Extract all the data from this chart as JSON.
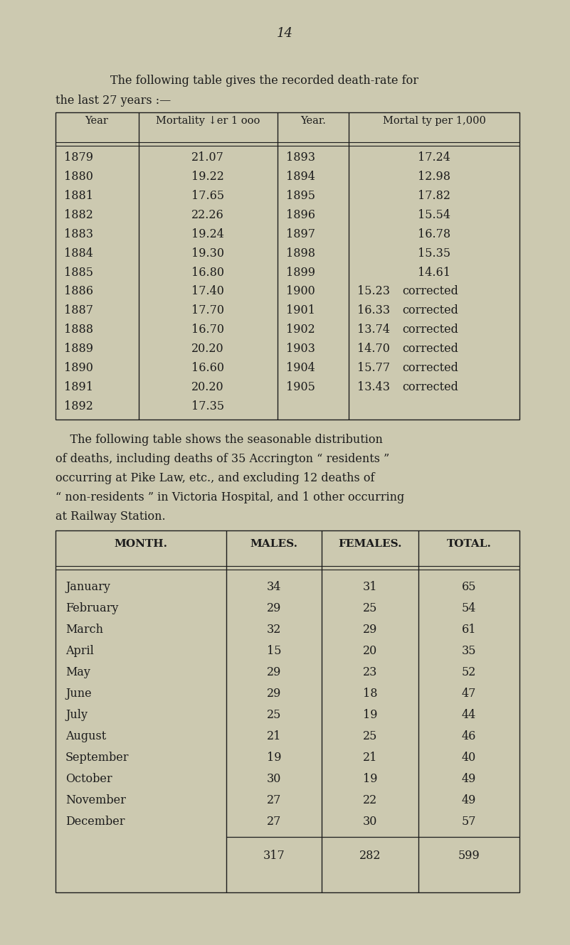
{
  "page_number": "14",
  "bg_color": "#ccc9b0",
  "text_color": "#1c1c1c",
  "intro_text1": "The following table gives the recorded death-rate for",
  "intro_text2": "the last 27 years :—",
  "t1_headers": [
    "Year",
    "Mortality ↓er 1 ooo",
    "Year.",
    "Mortal ty per 1,000"
  ],
  "t1_left": [
    [
      "1879",
      "21.07"
    ],
    [
      "1880",
      "19.22"
    ],
    [
      "1881",
      "17.65"
    ],
    [
      "1882",
      "22.26"
    ],
    [
      "1883",
      "19.24"
    ],
    [
      "1884",
      "19.30"
    ],
    [
      "1885",
      "16.80"
    ],
    [
      "1886",
      "17.40"
    ],
    [
      "1887",
      "17.70"
    ],
    [
      "1888",
      "16.70"
    ],
    [
      "1889",
      "20.20"
    ],
    [
      "1890",
      "16.60"
    ],
    [
      "1891",
      "20.20"
    ],
    [
      "1892",
      "17.35"
    ]
  ],
  "t1_right": [
    [
      "1893",
      "17.24",
      ""
    ],
    [
      "1894",
      "12.98",
      ""
    ],
    [
      "1895",
      "17.82",
      ""
    ],
    [
      "1896",
      "15.54",
      ""
    ],
    [
      "1897",
      "16.78",
      ""
    ],
    [
      "1898",
      "15.35",
      ""
    ],
    [
      "1899",
      "14.61",
      ""
    ],
    [
      "1900",
      "15.23",
      "corrected"
    ],
    [
      "1901",
      "16.33",
      "corrected"
    ],
    [
      "1902",
      "13.74",
      "corrected"
    ],
    [
      "1903",
      "14.70",
      "corrected"
    ],
    [
      "1904",
      "15.77",
      "corrected"
    ],
    [
      "1905",
      "13.43",
      "corrected"
    ]
  ],
  "mid_para": [
    "    The following table shows the seasonable distribution",
    "of deaths, including deaths of 35 Accrington “ residents ”",
    "occurring at Pike Law, etc., and excluding 12 deaths of",
    "“ non-residents ” in Victoria Hospital, and 1 other occurring",
    "at Railway Station."
  ],
  "t2_headers": [
    "Month.",
    "Males.",
    "Females.",
    "Total."
  ],
  "t2_rows": [
    [
      "January         ",
      "34",
      "31",
      "65"
    ],
    [
      "February       ",
      "29",
      "25",
      "54"
    ],
    [
      "March           ",
      "32",
      "29",
      "61"
    ],
    [
      "April           ",
      "15",
      "20",
      "35"
    ],
    [
      "May            ",
      "29",
      "23",
      "52"
    ],
    [
      "June           ",
      "29",
      "18",
      "47"
    ],
    [
      "July           ",
      "25",
      "19",
      "44"
    ],
    [
      "August         ",
      "21",
      "25",
      "46"
    ],
    [
      "September       ",
      "19",
      "21",
      "40"
    ],
    [
      "October         ",
      "30",
      "19",
      "49"
    ],
    [
      "November       ",
      "27",
      "22",
      "49"
    ],
    [
      "December       ",
      "27",
      "30",
      "57"
    ]
  ],
  "t2_totals": [
    "",
    "317",
    "282",
    "599"
  ]
}
